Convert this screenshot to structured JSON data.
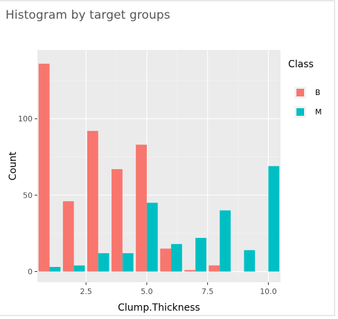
{
  "header": {
    "title": "Histogram by target groups"
  },
  "chart_data": {
    "type": "bar",
    "xlabel": "Clump.Thickness",
    "ylabel": "Count",
    "x": [
      1,
      2,
      3,
      4,
      5,
      6,
      7,
      8,
      9,
      10
    ],
    "xlim": [
      0.5,
      10.5
    ],
    "ylim": [
      -7,
      145
    ],
    "x_ticks": [
      2.5,
      5.0,
      7.5,
      10.0
    ],
    "x_tick_labels": [
      "2.5",
      "5.0",
      "7.5",
      "10.0"
    ],
    "y_ticks": [
      0,
      50,
      100
    ],
    "y_tick_labels": [
      "0",
      "50",
      "100"
    ],
    "legend": {
      "title": "Class",
      "placement": "right"
    },
    "series": [
      {
        "name": "B",
        "color": "#F8766D",
        "values": [
          136,
          46,
          92,
          67,
          83,
          15,
          1,
          4,
          0,
          0
        ]
      },
      {
        "name": "M",
        "color": "#00BFC4",
        "values": [
          3,
          4,
          12,
          12,
          45,
          18,
          22,
          40,
          14,
          69
        ]
      }
    ],
    "grid": true,
    "panel_background": "#EBEBEB"
  }
}
